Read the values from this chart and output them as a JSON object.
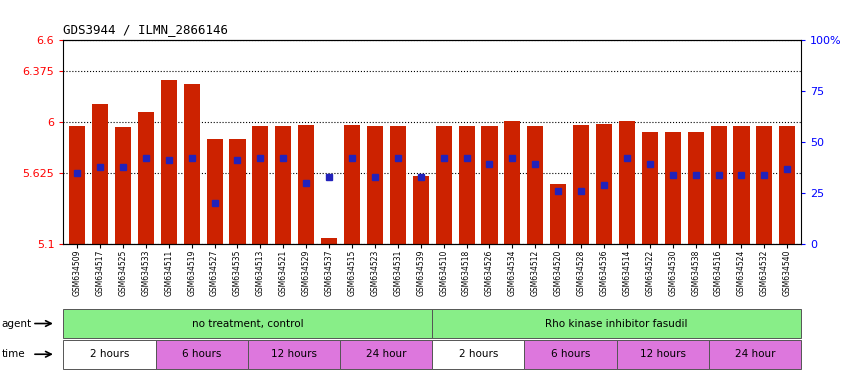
{
  "title": "GDS3944 / ILMN_2866146",
  "samples": [
    "GSM634509",
    "GSM634517",
    "GSM634525",
    "GSM634533",
    "GSM634511",
    "GSM634519",
    "GSM634527",
    "GSM634535",
    "GSM634513",
    "GSM634521",
    "GSM634529",
    "GSM634537",
    "GSM634515",
    "GSM634523",
    "GSM634531",
    "GSM634539",
    "GSM634510",
    "GSM634518",
    "GSM634526",
    "GSM634534",
    "GSM634512",
    "GSM634520",
    "GSM634528",
    "GSM634536",
    "GSM634514",
    "GSM634522",
    "GSM634530",
    "GSM634538",
    "GSM634516",
    "GSM634524",
    "GSM634532",
    "GSM634540"
  ],
  "red_values": [
    5.965,
    6.13,
    5.96,
    6.07,
    6.31,
    6.28,
    5.87,
    5.875,
    5.965,
    5.97,
    5.975,
    5.145,
    5.975,
    5.965,
    5.965,
    5.6,
    5.965,
    5.965,
    5.965,
    6.005,
    5.965,
    5.54,
    5.975,
    5.985,
    6.005,
    5.925,
    5.925,
    5.925,
    5.965,
    5.965,
    5.965,
    5.965
  ],
  "blue_percentiles": [
    35,
    38,
    38,
    42,
    41,
    42,
    20,
    41,
    42,
    42,
    30,
    33,
    42,
    33,
    42,
    33,
    42,
    42,
    39,
    42,
    39,
    26,
    26,
    29,
    42,
    39,
    34,
    34,
    34,
    34,
    34,
    37
  ],
  "y_min": 5.1,
  "y_max": 6.6,
  "y_ticks": [
    5.1,
    5.625,
    6.0,
    6.375,
    6.6
  ],
  "y_ticklabels": [
    "5.1",
    "5.625",
    "6",
    "6.375",
    "6.6"
  ],
  "y2_ticks": [
    0,
    25,
    50,
    75,
    100
  ],
  "y2_ticklabels": [
    "0",
    "25",
    "50",
    "75",
    "100%"
  ],
  "bar_color": "#cc2200",
  "blue_color": "#2222bb",
  "time_groups": [
    {
      "label": "2 hours",
      "start": 0,
      "end": 4,
      "color": "#ffffff"
    },
    {
      "label": "6 hours",
      "start": 4,
      "end": 8,
      "color": "#dd77dd"
    },
    {
      "label": "12 hours",
      "start": 8,
      "end": 12,
      "color": "#dd77dd"
    },
    {
      "label": "24 hour",
      "start": 12,
      "end": 16,
      "color": "#dd77dd"
    },
    {
      "label": "2 hours",
      "start": 16,
      "end": 20,
      "color": "#ffffff"
    },
    {
      "label": "6 hours",
      "start": 20,
      "end": 24,
      "color": "#dd77dd"
    },
    {
      "label": "12 hours",
      "start": 24,
      "end": 28,
      "color": "#dd77dd"
    },
    {
      "label": "24 hour",
      "start": 28,
      "end": 32,
      "color": "#dd77dd"
    }
  ],
  "agent_color": "#88ee88",
  "agent_groups": [
    {
      "label": "no treatment, control",
      "start": 0,
      "end": 16
    },
    {
      "label": "Rho kinase inhibitor fasudil",
      "start": 16,
      "end": 32
    }
  ]
}
